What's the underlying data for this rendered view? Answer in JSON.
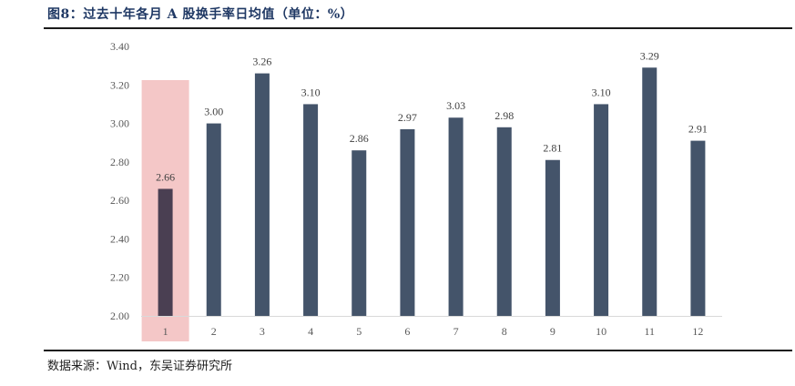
{
  "figure": {
    "title": "图8：过去十年各月 A 股换手率日均值（单位：%）",
    "source": "数据来源：Wind，东吴证券研究所"
  },
  "colors": {
    "bar": "#44546a",
    "highlight_band": "#f4c7c7",
    "highlighted_bar": "#4a3f52",
    "axis": "#d9d9d9",
    "text": "#595959"
  },
  "chart_data": {
    "type": "bar",
    "categories": [
      "1",
      "2",
      "3",
      "4",
      "5",
      "6",
      "7",
      "8",
      "9",
      "10",
      "11",
      "12"
    ],
    "values": [
      2.66,
      3.0,
      3.26,
      3.1,
      2.86,
      2.97,
      3.03,
      2.98,
      2.81,
      3.1,
      3.29,
      2.91
    ],
    "data_labels": [
      "2.66",
      "3.00",
      "3.26",
      "3.10",
      "2.86",
      "2.97",
      "3.03",
      "2.98",
      "2.81",
      "3.10",
      "3.29",
      "2.91"
    ],
    "ylim": [
      2.0,
      3.4
    ],
    "yticks": [
      "2.00",
      "2.20",
      "2.40",
      "2.60",
      "2.80",
      "3.00",
      "3.20",
      "3.40"
    ],
    "highlighted_category": "1",
    "grid": false,
    "legend": "none"
  }
}
